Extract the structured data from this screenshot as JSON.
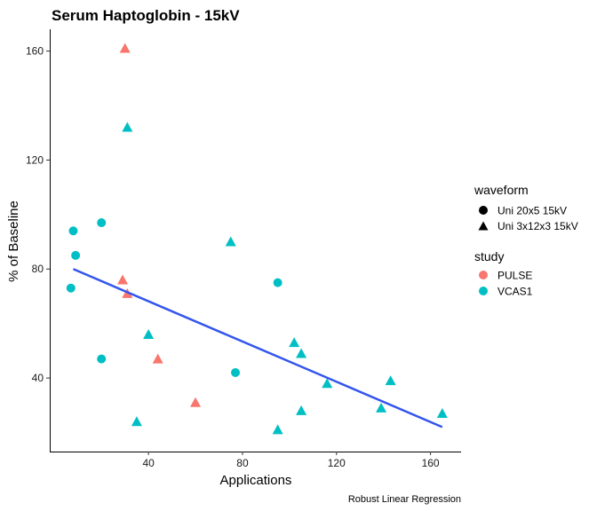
{
  "chart_data": {
    "type": "scatter",
    "title": "Serum Haptoglobin - 15kV",
    "xlabel": "Applications",
    "ylabel": "% of Baseline",
    "caption": "Robust Linear Regression",
    "xlim": [
      -2,
      173
    ],
    "ylim": [
      13,
      168
    ],
    "x_ticks": [
      40,
      80,
      120,
      160
    ],
    "y_ticks": [
      40,
      80,
      120,
      160
    ],
    "grid": false,
    "legend_position": "right",
    "shape_legend": {
      "title": "waveform",
      "entries": [
        {
          "label": "Uni 20x5 15kV",
          "shape": "circle"
        },
        {
          "label": "Uni 3x12x3 15kV",
          "shape": "triangle"
        }
      ]
    },
    "color_legend": {
      "title": "study",
      "entries": [
        {
          "label": "PULSE",
          "color": "#F8766D"
        },
        {
          "label": "VCAS1",
          "color": "#00BFC4"
        }
      ]
    },
    "points": [
      {
        "x": 30,
        "y": 161,
        "shape": "triangle",
        "color": "#F8766D"
      },
      {
        "x": 29,
        "y": 76,
        "shape": "triangle",
        "color": "#F8766D"
      },
      {
        "x": 31,
        "y": 71,
        "shape": "triangle",
        "color": "#F8766D"
      },
      {
        "x": 44,
        "y": 47,
        "shape": "triangle",
        "color": "#F8766D"
      },
      {
        "x": 60,
        "y": 31,
        "shape": "triangle",
        "color": "#F8766D"
      },
      {
        "x": 31,
        "y": 132,
        "shape": "triangle",
        "color": "#00BFC4"
      },
      {
        "x": 75,
        "y": 90,
        "shape": "triangle",
        "color": "#00BFC4"
      },
      {
        "x": 40,
        "y": 56,
        "shape": "triangle",
        "color": "#00BFC4"
      },
      {
        "x": 35,
        "y": 24,
        "shape": "triangle",
        "color": "#00BFC4"
      },
      {
        "x": 102,
        "y": 53,
        "shape": "triangle",
        "color": "#00BFC4"
      },
      {
        "x": 105,
        "y": 49,
        "shape": "triangle",
        "color": "#00BFC4"
      },
      {
        "x": 116,
        "y": 38,
        "shape": "triangle",
        "color": "#00BFC4"
      },
      {
        "x": 143,
        "y": 39,
        "shape": "triangle",
        "color": "#00BFC4"
      },
      {
        "x": 105,
        "y": 28,
        "shape": "triangle",
        "color": "#00BFC4"
      },
      {
        "x": 139,
        "y": 29,
        "shape": "triangle",
        "color": "#00BFC4"
      },
      {
        "x": 165,
        "y": 27,
        "shape": "triangle",
        "color": "#00BFC4"
      },
      {
        "x": 95,
        "y": 21,
        "shape": "triangle",
        "color": "#00BFC4"
      },
      {
        "x": 20,
        "y": 97,
        "shape": "circle",
        "color": "#00BFC4"
      },
      {
        "x": 8,
        "y": 94,
        "shape": "circle",
        "color": "#00BFC4"
      },
      {
        "x": 9,
        "y": 85,
        "shape": "circle",
        "color": "#00BFC4"
      },
      {
        "x": 7,
        "y": 73,
        "shape": "circle",
        "color": "#00BFC4"
      },
      {
        "x": 20,
        "y": 47,
        "shape": "circle",
        "color": "#00BFC4"
      },
      {
        "x": 77,
        "y": 42,
        "shape": "circle",
        "color": "#00BFC4"
      },
      {
        "x": 95,
        "y": 75,
        "shape": "circle",
        "color": "#00BFC4"
      }
    ],
    "regression_line": {
      "x": [
        8,
        165
      ],
      "y": [
        80,
        22
      ],
      "color": "#3355EE"
    }
  }
}
